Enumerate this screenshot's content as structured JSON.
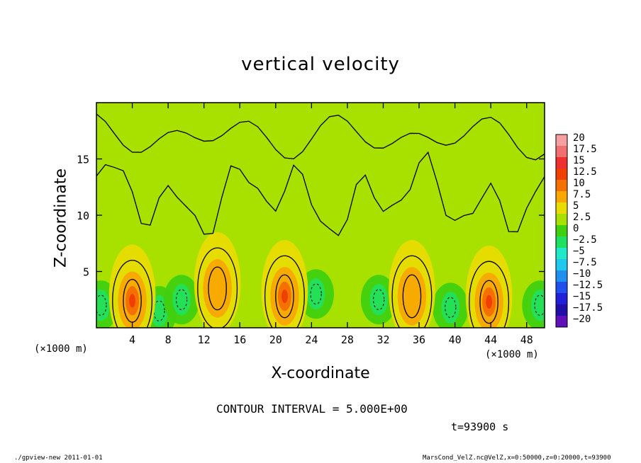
{
  "chart_data": {
    "type": "heatmap",
    "title": "vertical velocity",
    "xlabel": "X-coordinate",
    "ylabel": "Z-coordinate",
    "x_unit_left": "(×1000 m)",
    "x_unit_right": "(×1000 m)",
    "xlim": [
      0,
      50
    ],
    "ylim": [
      0,
      20
    ],
    "x_ticks": [
      4,
      8,
      12,
      16,
      20,
      24,
      28,
      32,
      36,
      40,
      44,
      48
    ],
    "x_tick_labels": [
      "4",
      "8",
      "12",
      "16",
      "20",
      "24",
      "28",
      "32",
      "36",
      "40",
      "44",
      "48"
    ],
    "y_ticks": [
      5,
      10,
      15
    ],
    "y_tick_labels": [
      "5",
      "10",
      "15"
    ],
    "colorbar": {
      "levels": [
        20,
        17.5,
        15,
        12.5,
        10,
        7.5,
        5,
        2.5,
        0,
        -2.5,
        -5,
        -7.5,
        -10,
        -12.5,
        -15,
        -17.5,
        -20
      ],
      "labels": [
        "20",
        "17.5",
        "15",
        "12.5",
        "10",
        "7.5",
        "5",
        "2.5",
        "0",
        "−2.5",
        "−5",
        "−7.5",
        "−10",
        "−12.5",
        "−15",
        "−17.5",
        "−20"
      ],
      "colors": [
        "#f4a0a0",
        "#f07070",
        "#ee3030",
        "#f04000",
        "#f47000",
        "#f8a800",
        "#e8dc00",
        "#a8e000",
        "#40d010",
        "#20e060",
        "#20e8c8",
        "#20c8ee",
        "#2090ee",
        "#2050ee",
        "#2020d8",
        "#2010a8",
        "#6010b8"
      ]
    },
    "updrafts": [
      {
        "x": 4.0,
        "z": 2.4,
        "peak": 10
      },
      {
        "x": 13.5,
        "z": 3.5,
        "peak": 5
      },
      {
        "x": 21.0,
        "z": 2.8,
        "peak": 10
      },
      {
        "x": 35.2,
        "z": 2.8,
        "peak": 5
      },
      {
        "x": 43.8,
        "z": 2.3,
        "peak": 10
      }
    ],
    "downdrafts": [
      {
        "x": 0.5,
        "z": 2.0
      },
      {
        "x": 7.0,
        "z": 1.5
      },
      {
        "x": 9.5,
        "z": 2.5
      },
      {
        "x": 24.5,
        "z": 3.0
      },
      {
        "x": 31.5,
        "z": 2.5
      },
      {
        "x": 39.5,
        "z": 1.8
      },
      {
        "x": 49.5,
        "z": 2.0
      }
    ],
    "grid": false,
    "legend": "right colorbar"
  },
  "contour_note": "CONTOUR INTERVAL = 5.000E+00",
  "time_label": "t=93900 s",
  "footer_left": "./gpview-new   2011-01-01",
  "footer_right": "MarsCond_VelZ.nc@VelZ,x=0:50000,z=0:20000,t=93900"
}
